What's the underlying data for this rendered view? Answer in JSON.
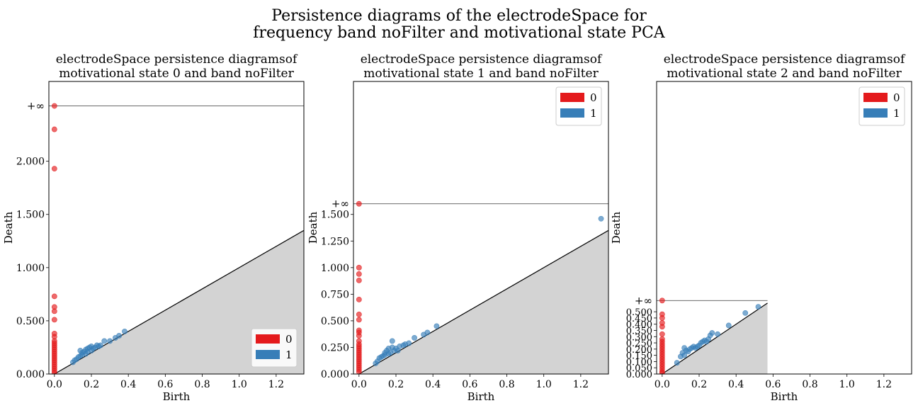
{
  "figure": {
    "title_line1": "Persistence diagrams of the electrodeSpace for",
    "title_line2": "frequency band noFilter and motivational state PCA"
  },
  "colors": {
    "h0": "#e41a1c",
    "h1": "#377eb8",
    "diagonal_fill": "#d3d3d3"
  },
  "chart_data": [
    {
      "type": "scatter",
      "title_line1": "electrodeSpace persistence diagramsof",
      "title_line2": "motivational state 0 and band noFilter",
      "xlabel": "Birth",
      "ylabel": "Death",
      "xlim": [
        -0.03,
        1.35
      ],
      "ylim": [
        0.0,
        2.75
      ],
      "inf_value": 2.52,
      "inf_label": "+∞",
      "xticks": [
        0.0,
        0.2,
        0.4,
        0.6,
        0.8,
        1.0,
        1.2
      ],
      "xtick_labels": [
        "0.0",
        "0.2",
        "0.4",
        "0.6",
        "0.8",
        "1.0",
        "1.2"
      ],
      "yticks": [
        0.0,
        0.5,
        1.0,
        1.5,
        2.0
      ],
      "ytick_labels": [
        "0.000",
        "0.500",
        "1.000",
        "1.500",
        "2.000"
      ],
      "legend_position": "lower-right",
      "legend": [
        "0",
        "1"
      ],
      "series": [
        {
          "name": "0",
          "points": [
            [
              0,
              2.52
            ],
            [
              0,
              2.3
            ],
            [
              0,
              1.93
            ],
            [
              0,
              0.73
            ],
            [
              0,
              0.63
            ],
            [
              0,
              0.59
            ],
            [
              0,
              0.51
            ],
            [
              0,
              0.38
            ],
            [
              0,
              0.35
            ],
            [
              0,
              0.31
            ],
            [
              0,
              0.29
            ],
            [
              0,
              0.27
            ],
            [
              0,
              0.25
            ],
            [
              0,
              0.23
            ],
            [
              0,
              0.21
            ],
            [
              0,
              0.19
            ],
            [
              0,
              0.17
            ],
            [
              0,
              0.15
            ],
            [
              0,
              0.13
            ],
            [
              0,
              0.11
            ],
            [
              0,
              0.09
            ],
            [
              0,
              0.07
            ],
            [
              0,
              0.05
            ],
            [
              0,
              0.03
            ],
            [
              0,
              0.01
            ]
          ]
        },
        {
          "name": "1",
          "points": [
            [
              0.1,
              0.11
            ],
            [
              0.11,
              0.13
            ],
            [
              0.12,
              0.14
            ],
            [
              0.13,
              0.16
            ],
            [
              0.14,
              0.17
            ],
            [
              0.14,
              0.22
            ],
            [
              0.15,
              0.2
            ],
            [
              0.15,
              0.18
            ],
            [
              0.16,
              0.21
            ],
            [
              0.17,
              0.19
            ],
            [
              0.17,
              0.23
            ],
            [
              0.18,
              0.24
            ],
            [
              0.18,
              0.21
            ],
            [
              0.19,
              0.25
            ],
            [
              0.2,
              0.22
            ],
            [
              0.2,
              0.26
            ],
            [
              0.21,
              0.24
            ],
            [
              0.22,
              0.25
            ],
            [
              0.23,
              0.27
            ],
            [
              0.24,
              0.26
            ],
            [
              0.25,
              0.27
            ],
            [
              0.27,
              0.31
            ],
            [
              0.3,
              0.31
            ],
            [
              0.33,
              0.34
            ],
            [
              0.35,
              0.36
            ],
            [
              0.38,
              0.4
            ]
          ]
        }
      ]
    },
    {
      "type": "scatter",
      "title_line1": "electrodeSpace persistence diagramsof",
      "title_line2": "motivational state 1 and band noFilter",
      "xlabel": "Birth",
      "ylabel": "Death",
      "xlim": [
        -0.03,
        1.35
      ],
      "ylim": [
        0.0,
        2.75
      ],
      "inf_value": 1.6,
      "inf_label": "+∞",
      "xticks": [
        0.0,
        0.2,
        0.4,
        0.6,
        0.8,
        1.0,
        1.2
      ],
      "xtick_labels": [
        "0.0",
        "0.2",
        "0.4",
        "0.6",
        "0.8",
        "1.0",
        "1.2"
      ],
      "yticks": [
        0.0,
        0.25,
        0.5,
        0.75,
        1.0,
        1.25,
        1.5
      ],
      "ytick_labels": [
        "0.000",
        "0.250",
        "0.500",
        "0.750",
        "1.000",
        "1.250",
        "1.500"
      ],
      "legend_position": "upper-right",
      "legend": [
        "0",
        "1"
      ],
      "series": [
        {
          "name": "0",
          "points": [
            [
              0,
              1.6
            ],
            [
              0,
              1.0
            ],
            [
              0,
              0.94
            ],
            [
              0,
              0.88
            ],
            [
              0,
              0.7
            ],
            [
              0,
              0.56
            ],
            [
              0,
              0.51
            ],
            [
              0,
              0.41
            ],
            [
              0,
              0.39
            ],
            [
              0,
              0.36
            ],
            [
              0,
              0.31
            ],
            [
              0,
              0.28
            ],
            [
              0,
              0.26
            ],
            [
              0,
              0.24
            ],
            [
              0,
              0.22
            ],
            [
              0,
              0.2
            ],
            [
              0,
              0.18
            ],
            [
              0,
              0.16
            ],
            [
              0,
              0.14
            ],
            [
              0,
              0.12
            ],
            [
              0,
              0.1
            ],
            [
              0,
              0.08
            ],
            [
              0,
              0.06
            ],
            [
              0,
              0.04
            ],
            [
              0,
              0.02
            ]
          ]
        },
        {
          "name": "1",
          "points": [
            [
              0.09,
              0.1
            ],
            [
              0.1,
              0.12
            ],
            [
              0.11,
              0.15
            ],
            [
              0.12,
              0.16
            ],
            [
              0.13,
              0.17
            ],
            [
              0.14,
              0.18
            ],
            [
              0.14,
              0.2
            ],
            [
              0.15,
              0.22
            ],
            [
              0.16,
              0.24
            ],
            [
              0.16,
              0.19
            ],
            [
              0.17,
              0.2
            ],
            [
              0.18,
              0.25
            ],
            [
              0.18,
              0.31
            ],
            [
              0.19,
              0.22
            ],
            [
              0.2,
              0.24
            ],
            [
              0.21,
              0.22
            ],
            [
              0.22,
              0.26
            ],
            [
              0.24,
              0.27
            ],
            [
              0.25,
              0.28
            ],
            [
              0.27,
              0.29
            ],
            [
              0.3,
              0.34
            ],
            [
              0.35,
              0.37
            ],
            [
              0.37,
              0.39
            ],
            [
              0.42,
              0.45
            ],
            [
              1.31,
              1.46
            ]
          ]
        }
      ]
    },
    {
      "type": "scatter",
      "title_line1": "electrodeSpace persistence diagramsof",
      "title_line2": "motivational state 2 and band noFilter",
      "xlabel": "Birth",
      "ylabel": "Death",
      "xlim": [
        -0.03,
        1.35
      ],
      "ylim": [
        0.0,
        2.35
      ],
      "inf_value": 0.59,
      "inf_label": "+∞",
      "diagonal_end": 0.57,
      "xticks": [
        0.0,
        0.2,
        0.4,
        0.6,
        0.8,
        1.0,
        1.2
      ],
      "xtick_labels": [
        "0.0",
        "0.2",
        "0.4",
        "0.6",
        "0.8",
        "1.0",
        "1.2"
      ],
      "yticks": [
        0.0,
        0.05,
        0.1,
        0.15,
        0.2,
        0.25,
        0.3,
        0.35,
        0.4,
        0.45,
        0.5
      ],
      "ytick_labels": [
        "0.000",
        "0.050",
        "0.100",
        "0.150",
        "0.200",
        "0.250",
        "0.300",
        "0.350",
        "0.400",
        "0.450",
        "0.500"
      ],
      "legend_position": "upper-right",
      "legend": [
        "0",
        "1"
      ],
      "series": [
        {
          "name": "0",
          "points": [
            [
              0,
              0.59
            ],
            [
              0,
              0.48
            ],
            [
              0,
              0.45
            ],
            [
              0,
              0.41
            ],
            [
              0,
              0.38
            ],
            [
              0,
              0.32
            ],
            [
              0,
              0.28
            ],
            [
              0,
              0.26
            ],
            [
              0,
              0.24
            ],
            [
              0,
              0.22
            ],
            [
              0,
              0.2
            ],
            [
              0,
              0.18
            ],
            [
              0,
              0.16
            ],
            [
              0,
              0.14
            ],
            [
              0,
              0.12
            ],
            [
              0,
              0.1
            ],
            [
              0,
              0.08
            ],
            [
              0,
              0.06
            ],
            [
              0,
              0.04
            ],
            [
              0,
              0.02
            ],
            [
              0,
              0.01
            ]
          ]
        },
        {
          "name": "1",
          "points": [
            [
              0.08,
              0.09
            ],
            [
              0.1,
              0.14
            ],
            [
              0.11,
              0.17
            ],
            [
              0.12,
              0.15
            ],
            [
              0.12,
              0.21
            ],
            [
              0.13,
              0.19
            ],
            [
              0.14,
              0.18
            ],
            [
              0.15,
              0.2
            ],
            [
              0.16,
              0.21
            ],
            [
              0.17,
              0.22
            ],
            [
              0.18,
              0.21
            ],
            [
              0.19,
              0.22
            ],
            [
              0.2,
              0.23
            ],
            [
              0.21,
              0.25
            ],
            [
              0.22,
              0.26
            ],
            [
              0.23,
              0.27
            ],
            [
              0.24,
              0.26
            ],
            [
              0.25,
              0.28
            ],
            [
              0.26,
              0.31
            ],
            [
              0.27,
              0.33
            ],
            [
              0.3,
              0.32
            ],
            [
              0.36,
              0.39
            ],
            [
              0.45,
              0.49
            ],
            [
              0.52,
              0.54
            ]
          ]
        }
      ]
    }
  ]
}
